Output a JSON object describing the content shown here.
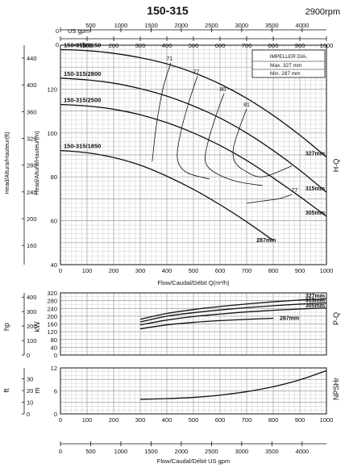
{
  "chart_data": {
    "type": "line",
    "title": "150-315",
    "speed": "2900rpm",
    "top_axes": {
      "usgpm_label": "US gpm",
      "usgpm_ticks": [
        0,
        500,
        1000,
        1500,
        2000,
        2500,
        3000,
        3500,
        4000,
        4500
      ],
      "m3h_label": "m³/h",
      "m3h_ticks": [
        0,
        100,
        200,
        300,
        400,
        500,
        600,
        700,
        800,
        900,
        1000
      ]
    },
    "hq": {
      "xlim": [
        0,
        1000
      ],
      "ylim": [
        40,
        140
      ],
      "yticks": [
        40,
        60,
        80,
        100,
        120
      ],
      "ft_ticks": [
        160,
        200,
        240,
        280,
        320,
        360,
        400,
        440
      ],
      "xticks": [
        0,
        100,
        200,
        300,
        400,
        500,
        600,
        700,
        800,
        900,
        1000
      ],
      "xlabel": "Flow/Caudal/Débit Q(m³/h)",
      "ylabel": "Head/Altura/Hauteur(m)",
      "ylabel_ft": "Head/Altura/Hauteur(ft)",
      "side_label": "H-Q",
      "impeller_box": {
        "title": "IMPELLER DIA.",
        "max": "Max.  327  mm",
        "min": "Min.   287  mm"
      },
      "series": [
        {
          "name": "150-315/3150",
          "right_label": "327mm",
          "x": [
            0,
            100,
            200,
            300,
            400,
            500,
            600,
            700,
            800,
            900,
            1000
          ],
          "y": [
            138,
            137.5,
            136.3,
            134.3,
            131.5,
            127.5,
            122.3,
            115.8,
            108,
            99,
            89
          ]
        },
        {
          "name": "150-315/2800",
          "right_label": "315mm",
          "x": [
            0,
            100,
            200,
            300,
            400,
            500,
            600,
            700,
            800,
            900,
            1000
          ],
          "y": [
            125,
            124.2,
            122.7,
            120.2,
            116.8,
            112.3,
            106.8,
            100,
            92,
            83,
            73
          ]
        },
        {
          "name": "150-315/2500",
          "right_label": "305mm",
          "x": [
            0,
            100,
            200,
            300,
            400,
            500,
            600,
            700,
            800,
            900,
            1000
          ],
          "y": [
            113,
            112.3,
            110.8,
            108.3,
            104.7,
            100,
            94.3,
            87.5,
            79.5,
            71,
            62
          ]
        },
        {
          "name": "150-315/1850",
          "right_label": "287mm",
          "x": [
            0,
            100,
            200,
            300,
            400,
            500,
            600,
            700,
            800
          ],
          "y": [
            92,
            91,
            88.8,
            85.3,
            80.3,
            74.3,
            67.3,
            59.5,
            51
          ]
        }
      ],
      "efficiency_labels": [
        "71",
        "77",
        "80",
        "81",
        "77"
      ]
    },
    "power": {
      "xlim": [
        0,
        1000
      ],
      "ylim": [
        0,
        320
      ],
      "yticks": [
        0,
        80,
        160,
        240,
        320
      ],
      "ytick_labels": [
        "0",
        "40",
        "80",
        "120",
        "160",
        "200",
        "240",
        "280",
        "320"
      ],
      "hp_ticks": [
        0,
        100,
        200,
        300,
        400
      ],
      "ylabel": "kW",
      "ylabel_hp": "hp",
      "side_label": "P-Q",
      "series": [
        {
          "name": "327mm",
          "x": [
            300,
            400,
            500,
            600,
            700,
            800,
            900,
            1000
          ],
          "y": [
            184,
            214,
            234,
            250,
            263,
            274,
            283,
            290
          ]
        },
        {
          "name": "315mm",
          "x": [
            300,
            400,
            500,
            600,
            700,
            800,
            900,
            1000
          ],
          "y": [
            170,
            200,
            218,
            232,
            244,
            254,
            262,
            268
          ]
        },
        {
          "name": "305mm",
          "x": [
            300,
            400,
            500,
            600,
            700,
            800,
            900,
            1000
          ],
          "y": [
            155,
            180,
            198,
            211,
            222,
            230,
            237,
            242
          ]
        },
        {
          "name": "287mm",
          "x": [
            300,
            400,
            500,
            600,
            700,
            800
          ],
          "y": [
            135,
            155,
            168,
            177,
            184,
            189
          ]
        }
      ]
    },
    "npsh": {
      "xlim": [
        0,
        1000
      ],
      "ylim": [
        0,
        12
      ],
      "yticks": [
        0,
        6,
        12
      ],
      "ft_ticks": [
        0,
        10,
        20,
        30
      ],
      "ylabel": "m",
      "ylabel_ft": "ft",
      "side_label": "NPSHr",
      "series": [
        {
          "x": [
            300,
            400,
            500,
            600,
            700,
            800,
            900,
            1000
          ],
          "y": [
            3.8,
            4.0,
            4.3,
            4.9,
            5.8,
            7.1,
            8.9,
            11.3
          ]
        }
      ]
    },
    "bottom_axis": {
      "ticks": [
        0,
        500,
        1000,
        1500,
        2000,
        2500,
        3000,
        3500,
        4000
      ],
      "label": "Flow/Caudal/Débit  US gpm"
    }
  }
}
